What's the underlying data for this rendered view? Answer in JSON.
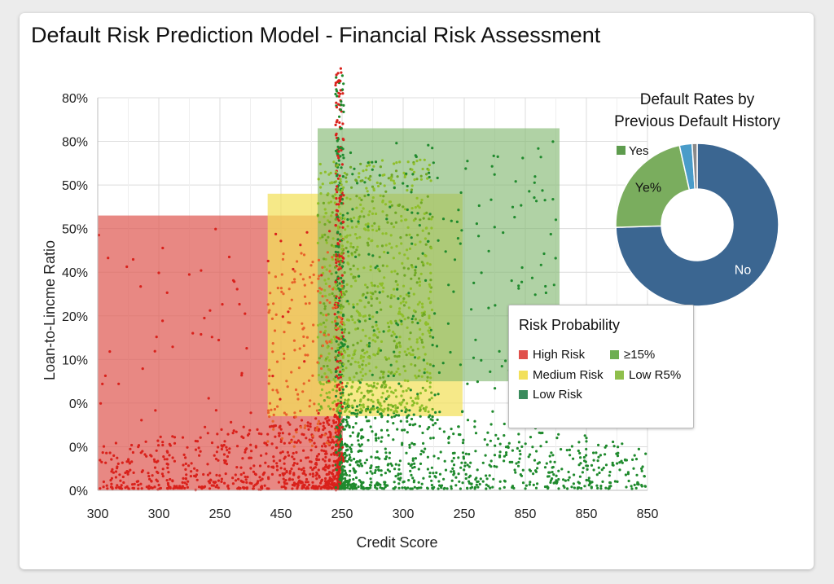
{
  "page": {
    "title": "Default Risk Prediction Model - Financial Risk Assessment"
  },
  "chart_data": [
    {
      "type": "scatter",
      "title": "Default Risk Prediction Model - Financial Risk Assessment",
      "xlabel": "Credit Score",
      "ylabel": "Loan-to-Lincme Ratio",
      "xlim": [
        300,
        850
      ],
      "ylim": [
        0,
        90
      ],
      "x_tick_labels": [
        "300",
        "300",
        "250",
        "450",
        "250",
        "300",
        "250",
        "850",
        "850",
        "850"
      ],
      "y_tick_labels": [
        "0%",
        "0%",
        "0%",
        "10%",
        "20%",
        "40%",
        "50%",
        "50%",
        "80%",
        "80%"
      ],
      "grid": true,
      "regions": [
        {
          "name": "High Risk",
          "color": "#e0605a",
          "x": [
            300,
            545
          ],
          "y": [
            0,
            63
          ]
        },
        {
          "name": "Medium Risk",
          "color": "#f2e05a",
          "x": [
            470,
            665
          ],
          "y": [
            17,
            68
          ]
        },
        {
          "name": "Low Risk",
          "color": "#7fb66e",
          "x": [
            520,
            762
          ],
          "y": [
            25,
            83
          ]
        }
      ],
      "series": [
        {
          "name": "High Risk",
          "color": "#d9211b",
          "x_range": [
            300,
            545
          ],
          "density": "dense near boundary ~540"
        },
        {
          "name": "Low Risk",
          "color": "#1f8a2d",
          "x_range": [
            540,
            850
          ],
          "density": "dense near boundary ~540"
        },
        {
          "name": "Medium Risk",
          "color": "#8fbf2a",
          "x_range": [
            520,
            630
          ],
          "density": "dense mid-band"
        }
      ],
      "decision_boundary_x": 542
    },
    {
      "type": "pie",
      "title_lines": [
        "Default Rates by",
        "Previous Default History"
      ],
      "style": "donut",
      "slices": [
        {
          "label": "No",
          "value": 74.5,
          "color": "#3b6691"
        },
        {
          "label": "Ye%",
          "value": 22.0,
          "color": "#7aad5e"
        },
        {
          "label": "",
          "value": 2.5,
          "color": "#4a9cc9"
        },
        {
          "label": "",
          "value": 1.0,
          "color": "#8a8a8a"
        }
      ],
      "legend": [
        {
          "label": "Yes",
          "color": "#5e9c4e"
        }
      ]
    }
  ],
  "legend": {
    "title": "Risk Probability",
    "items": [
      {
        "label": "High Risk",
        "color": "#e0504b"
      },
      {
        "label": "≥15%",
        "color": "#6daf52"
      },
      {
        "label": "Medium Risk",
        "color": "#f2e05a"
      },
      {
        "label": "Low R5%",
        "color": "#8fbf4c"
      },
      {
        "label": "Low Risk",
        "color": "#3a8b5c"
      }
    ]
  }
}
